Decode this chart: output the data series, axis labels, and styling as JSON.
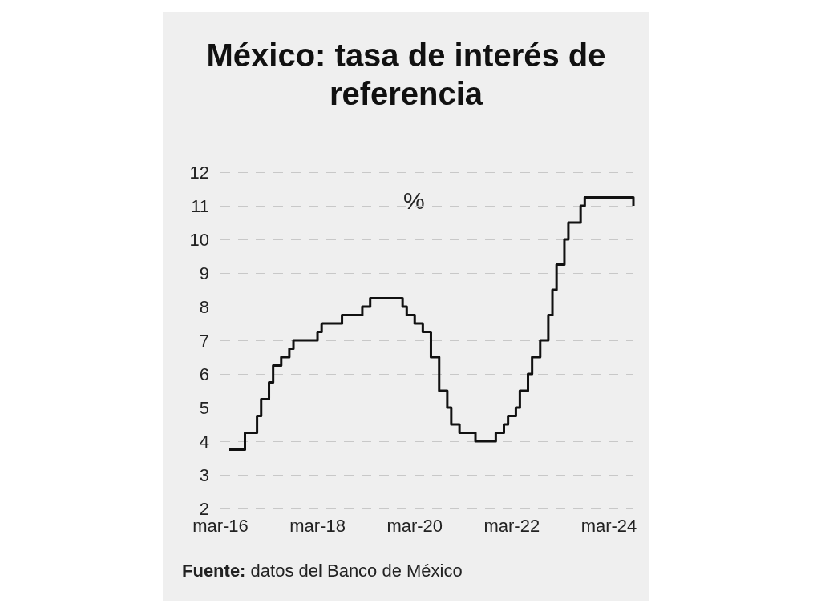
{
  "chart_data": {
    "type": "step",
    "title": "México: tasa de interés de referencia",
    "ylabel": "%",
    "x": [
      "2016-05",
      "2016-09",
      "2016-12",
      "2017-01",
      "2017-03",
      "2017-04",
      "2017-06",
      "2017-08",
      "2017-09",
      "2018-03",
      "2018-04",
      "2018-09",
      "2019-02",
      "2019-04",
      "2019-12",
      "2020-01",
      "2020-03",
      "2020-05",
      "2020-07",
      "2020-09",
      "2020-11",
      "2020-12",
      "2021-02",
      "2021-06",
      "2021-11",
      "2022-01",
      "2022-02",
      "2022-04",
      "2022-05",
      "2022-07",
      "2022-08",
      "2022-10",
      "2022-12",
      "2023-01",
      "2023-02",
      "2023-04",
      "2023-05",
      "2023-08",
      "2023-09",
      "2024-09"
    ],
    "series": [
      {
        "color": "#111111",
        "values": [
          3.75,
          4.25,
          4.75,
          5.25,
          5.75,
          6.25,
          6.5,
          6.75,
          7.0,
          7.25,
          7.5,
          7.75,
          8.0,
          8.25,
          8.0,
          7.75,
          7.5,
          7.25,
          6.5,
          5.5,
          5.0,
          4.5,
          4.25,
          4.0,
          4.25,
          4.5,
          4.75,
          5.0,
          5.5,
          6.0,
          6.5,
          7.0,
          7.75,
          8.5,
          9.25,
          10.0,
          10.5,
          11.0,
          11.25,
          11.0
        ]
      }
    ],
    "xlim": [
      "2016-03",
      "2024-09"
    ],
    "xticks": [
      {
        "value": "2016-03",
        "label": "mar-16"
      },
      {
        "value": "2018-03",
        "label": "mar-18"
      },
      {
        "value": "2020-03",
        "label": "mar-20"
      },
      {
        "value": "2022-03",
        "label": "mar-22"
      },
      {
        "value": "2024-03",
        "label": "mar-24"
      }
    ],
    "ylim": [
      2,
      12
    ],
    "yticks": [
      2,
      3,
      4,
      5,
      6,
      7,
      8,
      9,
      10,
      11,
      12
    ],
    "grid": "y",
    "line_style": "solid",
    "marker": "none",
    "annotations": [
      "Fuente: datos del Banco de México"
    ]
  }
}
